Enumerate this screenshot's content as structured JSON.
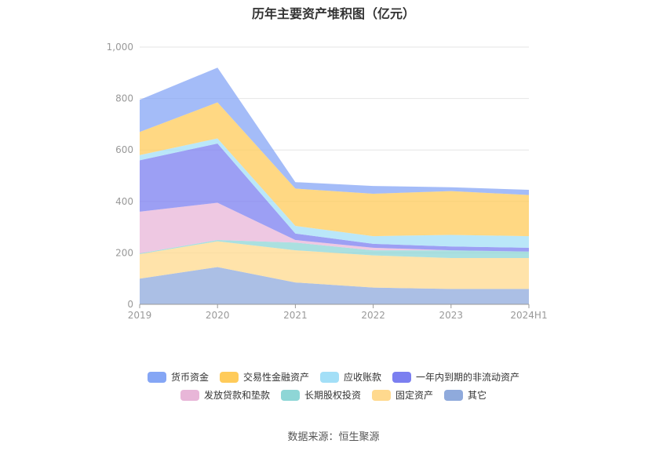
{
  "chart_data": {
    "type": "area",
    "stacked": true,
    "title": "历年主要资产堆积图（亿元）",
    "categories": [
      "2019",
      "2020",
      "2021",
      "2022",
      "2023",
      "2024H1"
    ],
    "ylim": [
      0,
      1000
    ],
    "yticks": [
      0,
      200,
      400,
      600,
      800,
      1000
    ],
    "ytick_labels": [
      "0",
      "200",
      "400",
      "600",
      "800",
      "1,000"
    ],
    "grid": true,
    "legend_position": "bottom",
    "series": [
      {
        "name": "其它",
        "color": "#8faadc",
        "values": [
          100,
          145,
          85,
          65,
          60,
          60
        ]
      },
      {
        "name": "固定资产",
        "color": "#ffd98e",
        "values": [
          95,
          100,
          125,
          125,
          120,
          120
        ]
      },
      {
        "name": "长期股权投资",
        "color": "#8ed6d6",
        "values": [
          3,
          5,
          30,
          20,
          30,
          25
        ]
      },
      {
        "name": "发放贷款和垫款",
        "color": "#e8b6d8",
        "values": [
          162,
          145,
          10,
          10,
          0,
          0
        ]
      },
      {
        "name": "一年内到期的非流动资产",
        "color": "#7b7ff0",
        "values": [
          200,
          230,
          25,
          15,
          15,
          15
        ]
      },
      {
        "name": "应收账款",
        "color": "#a3dff7",
        "values": [
          20,
          20,
          30,
          30,
          45,
          45
        ]
      },
      {
        "name": "交易性金融资产",
        "color": "#ffcb5a",
        "values": [
          90,
          140,
          145,
          165,
          170,
          160
        ]
      },
      {
        "name": "货币资金",
        "color": "#85a6f5",
        "values": [
          125,
          135,
          25,
          30,
          15,
          20
        ]
      }
    ]
  },
  "legend": {
    "row1": [
      "货币资金",
      "交易性金融资产",
      "应收账款",
      "一年内到期的非流动资产"
    ],
    "row2": [
      "发放贷款和垫款",
      "长期股权投资",
      "固定资产",
      "其它"
    ]
  },
  "source": "数据来源：恒生聚源"
}
